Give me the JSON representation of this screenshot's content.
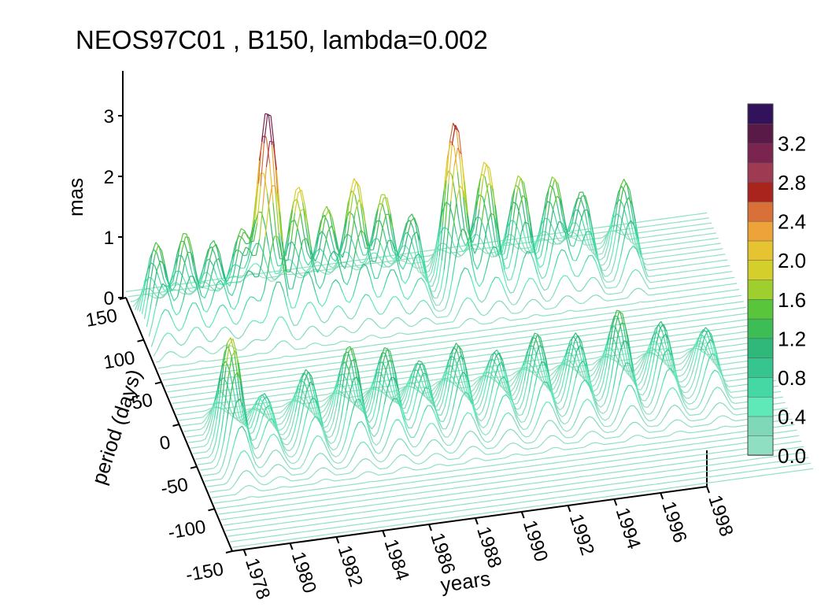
{
  "chart_data": {
    "type": "surface3d",
    "title": "NEOS97C01 , B150,  lambda=0.002",
    "xlabel": "years",
    "ylabel": "period (days)",
    "zlabel": "mas",
    "x_ticks": [
      "1978",
      "1980",
      "1982",
      "1984",
      "1986",
      "1988",
      "1990",
      "1992",
      "1994",
      "1996",
      "1998"
    ],
    "y_ticks": [
      "150",
      "100",
      "50",
      "0",
      "-50",
      "-100",
      "-150"
    ],
    "z_ticks": [
      "0",
      "1",
      "2",
      "3"
    ],
    "xlim": [
      1977.5,
      1998
    ],
    "ylim": [
      -150,
      150
    ],
    "zlim": [
      0,
      3.4
    ],
    "colorbar": {
      "labels": [
        "3.2",
        "2.8",
        "2.4",
        "2.0",
        "1.6",
        "1.2",
        "0.8",
        "0.4",
        "0.0"
      ],
      "levels": [
        0.0,
        0.2,
        0.4,
        0.6,
        0.8,
        1.0,
        1.2,
        1.4,
        1.6,
        1.8,
        2.0,
        2.2,
        2.4,
        2.6,
        2.8,
        3.0,
        3.2,
        3.4
      ],
      "colors": [
        "#8fe0c2",
        "#7fd9b8",
        "#5fe8b8",
        "#45d8a4",
        "#37c58f",
        "#2fb879",
        "#3cbd55",
        "#58c53a",
        "#9fcf2e",
        "#d4cf2a",
        "#e6c431",
        "#eea23a",
        "#d87038",
        "#a8241c",
        "#9e3a52",
        "#7c2450",
        "#5a1a48",
        "#32125a"
      ]
    },
    "peaks_annual_band": [
      {
        "x": 1978.0,
        "z": 1.5
      },
      {
        "x": 1979.0,
        "z": 1.6
      },
      {
        "x": 1980.0,
        "z": 1.4
      },
      {
        "x": 1981.0,
        "z": 1.5
      },
      {
        "x": 1981.9,
        "z": 3.4
      },
      {
        "x": 1983.0,
        "z": 2.1
      },
      {
        "x": 1984.0,
        "z": 1.7
      },
      {
        "x": 1985.0,
        "z": 2.1
      },
      {
        "x": 1986.0,
        "z": 1.8
      },
      {
        "x": 1987.0,
        "z": 1.4
      },
      {
        "x": 1988.5,
        "z": 2.8
      },
      {
        "x": 1989.6,
        "z": 2.1
      },
      {
        "x": 1990.8,
        "z": 1.8
      },
      {
        "x": 1992.0,
        "z": 1.7
      },
      {
        "x": 1993.0,
        "z": 1.4
      },
      {
        "x": 1994.5,
        "z": 1.5
      }
    ],
    "peaks_retrograde_band": [
      {
        "x": 1978.8,
        "z": 1.9
      },
      {
        "x": 1980.0,
        "z": 0.9
      },
      {
        "x": 1981.5,
        "z": 1.2
      },
      {
        "x": 1983.0,
        "z": 1.5
      },
      {
        "x": 1984.3,
        "z": 1.4
      },
      {
        "x": 1985.5,
        "z": 1.1
      },
      {
        "x": 1986.8,
        "z": 1.3
      },
      {
        "x": 1988.2,
        "z": 1.1
      },
      {
        "x": 1989.6,
        "z": 1.3
      },
      {
        "x": 1991.0,
        "z": 1.2
      },
      {
        "x": 1992.5,
        "z": 1.5
      },
      {
        "x": 1994.0,
        "z": 1.2
      },
      {
        "x": 1995.6,
        "z": 1.0
      }
    ]
  }
}
